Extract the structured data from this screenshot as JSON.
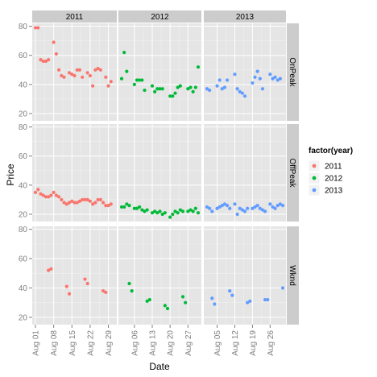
{
  "chart_data": {
    "type": "scatter",
    "title": "",
    "xlabel": "Date",
    "ylabel": "Price",
    "ylim": [
      15,
      82
    ],
    "yticks": [
      20,
      40,
      60,
      80
    ],
    "grid": true,
    "legend_position": "right",
    "legend": {
      "title": "factor(year)",
      "entries": [
        {
          "label": "2011",
          "color": "#F8766D"
        },
        {
          "label": "2012",
          "color": "#00BA38"
        },
        {
          "label": "2013",
          "color": "#619CFF"
        }
      ]
    },
    "col_facets": [
      "2011",
      "2012",
      "2013"
    ],
    "row_facets": [
      "OnPeak",
      "OffPeak",
      "Wknd"
    ],
    "columns": [
      {
        "year": "2011",
        "start_day": 1,
        "tick_days": [
          1,
          8,
          15,
          22,
          29
        ],
        "tick_labels": [
          "Aug 01",
          "Aug 08",
          "Aug 15",
          "Aug 22",
          "Aug 29"
        ]
      },
      {
        "year": "2012",
        "start_day": 1,
        "tick_days": [
          6,
          13,
          20,
          27
        ],
        "tick_labels": [
          "Aug 06",
          "Aug 13",
          "Aug 20",
          "Aug 27"
        ]
      },
      {
        "year": "2013",
        "start_day": 1,
        "tick_days": [
          5,
          12,
          19,
          26
        ],
        "tick_labels": [
          "Aug 05",
          "Aug 12",
          "Aug 19",
          "Aug 26"
        ]
      }
    ],
    "series": [
      {
        "year": "2011",
        "peak": "OnPeak",
        "day": [
          1,
          2,
          3,
          4,
          5,
          6,
          8,
          9,
          10,
          11,
          12,
          14,
          15,
          16,
          17,
          18,
          19,
          21,
          22,
          23,
          24,
          25,
          26,
          28,
          29,
          30
        ],
        "values": [
          79,
          79,
          57,
          56,
          56,
          57,
          69,
          61,
          50,
          46,
          45,
          48,
          47,
          46,
          50,
          50,
          45,
          48,
          46,
          39,
          50,
          51,
          50,
          45,
          39,
          42
        ]
      },
      {
        "year": "2011",
        "peak": "OffPeak",
        "day": [
          1,
          2,
          3,
          4,
          5,
          6,
          7,
          8,
          9,
          10,
          11,
          12,
          13,
          14,
          15,
          16,
          17,
          18,
          19,
          20,
          21,
          22,
          23,
          24,
          25,
          26,
          27,
          28,
          29,
          30
        ],
        "values": [
          35,
          37,
          34,
          33,
          32,
          32,
          33,
          35,
          33,
          32,
          30,
          28,
          27,
          28,
          29,
          28,
          28,
          29,
          30,
          30,
          30,
          29,
          27,
          28,
          30,
          30,
          28,
          26,
          26,
          27
        ]
      },
      {
        "year": "2011",
        "peak": "Wknd",
        "day": [
          6,
          7,
          13,
          14,
          20,
          21,
          27,
          28
        ],
        "values": [
          52,
          53,
          41,
          36,
          46,
          43,
          38,
          37
        ]
      },
      {
        "year": "2012",
        "peak": "OnPeak",
        "day": [
          1,
          2,
          3,
          6,
          7,
          8,
          9,
          10,
          13,
          14,
          15,
          16,
          17,
          20,
          21,
          22,
          23,
          24,
          27,
          28,
          29,
          30,
          31
        ],
        "values": [
          44,
          62,
          49,
          40,
          43,
          43,
          43,
          36,
          39,
          35,
          37,
          37,
          37,
          32,
          32,
          34,
          38,
          39,
          37,
          38,
          35,
          38,
          52
        ]
      },
      {
        "year": "2012",
        "peak": "OffPeak",
        "day": [
          1,
          2,
          3,
          4,
          6,
          7,
          8,
          9,
          10,
          11,
          13,
          14,
          15,
          16,
          17,
          18,
          20,
          21,
          22,
          23,
          24,
          25,
          27,
          28,
          29,
          30,
          31
        ],
        "values": [
          25,
          25,
          27,
          26,
          24,
          24,
          25,
          23,
          22,
          23,
          21,
          22,
          21,
          22,
          20,
          21,
          18,
          20,
          22,
          21,
          23,
          22,
          22,
          23,
          22,
          24,
          21
        ]
      },
      {
        "year": "2012",
        "peak": "Wknd",
        "day": [
          4,
          5,
          11,
          12,
          18,
          19,
          25,
          26
        ],
        "values": [
          43,
          38,
          31,
          32,
          28,
          26,
          34,
          30
        ]
      },
      {
        "year": "2013",
        "peak": "OnPeak",
        "day": [
          1,
          2,
          5,
          6,
          7,
          8,
          9,
          12,
          13,
          14,
          15,
          16,
          19,
          20,
          21,
          22,
          23,
          26,
          27,
          28,
          29,
          30
        ],
        "values": [
          37,
          36,
          39,
          43,
          37,
          38,
          43,
          47,
          37,
          35,
          34,
          32,
          41,
          45,
          49,
          44,
          37,
          47,
          44,
          45,
          43,
          44
        ]
      },
      {
        "year": "2013",
        "peak": "OffPeak",
        "day": [
          1,
          2,
          3,
          5,
          6,
          7,
          8,
          9,
          10,
          12,
          13,
          14,
          15,
          16,
          17,
          19,
          20,
          21,
          22,
          23,
          24,
          26,
          27,
          28,
          29,
          30,
          31
        ],
        "values": [
          25,
          24,
          22,
          24,
          25,
          26,
          27,
          26,
          24,
          27,
          20,
          24,
          23,
          22,
          24,
          24,
          25,
          26,
          24,
          23,
          22,
          27,
          25,
          24,
          26,
          27,
          26
        ]
      },
      {
        "year": "2013",
        "peak": "Wknd",
        "day": [
          3,
          4,
          10,
          11,
          17,
          18,
          24,
          25,
          31
        ],
        "values": [
          33,
          29,
          38,
          35,
          30,
          31,
          32,
          32,
          40
        ]
      }
    ]
  }
}
